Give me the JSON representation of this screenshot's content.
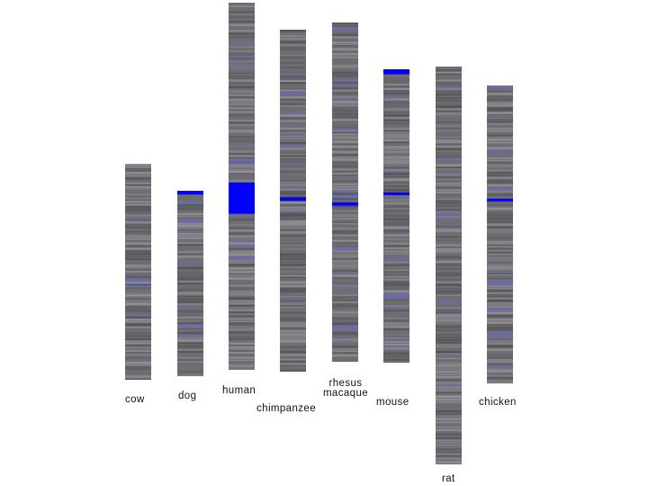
{
  "colors": {
    "base": "#6e6e72",
    "stripe_gray": "#9a9aa0",
    "stripe_dark": "#4f4f53",
    "stripe_blue": "#6a6ad8",
    "highlight": "#0000ff",
    "label": "#111111"
  },
  "chromosomes": [
    {
      "id": "cow",
      "label_lines": [
        "cow"
      ],
      "highlights": []
    },
    {
      "id": "dog",
      "label_lines": [
        "dog"
      ],
      "highlights": [
        {
          "start": 0.0,
          "end": 0.02
        }
      ]
    },
    {
      "id": "human",
      "label_lines": [
        "human"
      ],
      "highlights": [
        {
          "start": 0.49,
          "end": 0.575
        }
      ]
    },
    {
      "id": "chimpanzee",
      "label_lines": [
        "chimpanzee"
      ],
      "highlights": [
        {
          "start": 0.49,
          "end": 0.5
        }
      ]
    },
    {
      "id": "rhesus-macaque",
      "label_lines": [
        "rhesus",
        "macaque"
      ],
      "highlights": [
        {
          "start": 0.53,
          "end": 0.54
        }
      ]
    },
    {
      "id": "mouse",
      "label_lines": [
        "mouse"
      ],
      "highlights": [
        {
          "start": 0.0,
          "end": 0.017
        },
        {
          "start": 0.42,
          "end": 0.427
        }
      ]
    },
    {
      "id": "rat",
      "label_lines": [
        "rat"
      ],
      "highlights": []
    },
    {
      "id": "chicken",
      "label_lines": [
        "chicken"
      ],
      "highlights": [
        {
          "start": 0.38,
          "end": 0.388
        }
      ]
    }
  ]
}
